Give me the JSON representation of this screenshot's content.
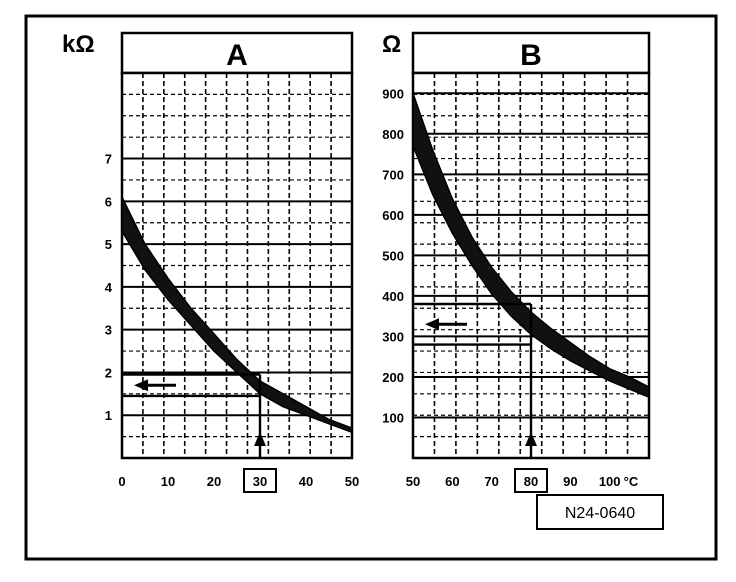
{
  "figure_id": "N24-0640",
  "colors": {
    "ink": "#000000",
    "paper": "#ffffff"
  },
  "chart_data": [
    {
      "type": "area",
      "panel": "A",
      "title": "A",
      "ylabel": "kΩ",
      "xlabel": "",
      "xlim": [
        0,
        50
      ],
      "ylim": [
        0,
        9
      ],
      "x_ticks": [
        0,
        10,
        20,
        30,
        40,
        50
      ],
      "x_tick_labels": [
        "0",
        "10",
        "20",
        "30",
        "40",
        "50"
      ],
      "y_ticks": [
        1,
        2,
        3,
        4,
        5,
        6,
        7
      ],
      "y_tick_labels": [
        "1",
        "2",
        "3",
        "4",
        "5",
        "6",
        "7"
      ],
      "grid": true,
      "band": {
        "x": [
          0,
          5,
          10,
          15,
          20,
          25,
          30,
          35,
          40,
          45,
          50
        ],
        "upper": [
          6.1,
          5.0,
          4.2,
          3.5,
          2.9,
          2.3,
          1.8,
          1.5,
          1.2,
          0.9,
          0.7
        ],
        "lower": [
          5.3,
          4.4,
          3.7,
          3.1,
          2.5,
          2.0,
          1.5,
          1.2,
          1.0,
          0.8,
          0.6
        ]
      },
      "reading": {
        "x": 30,
        "y_low": 1.45,
        "y_high": 1.95,
        "boxed_tick": "30"
      }
    },
    {
      "type": "area",
      "panel": "B",
      "title": "B",
      "ylabel": "Ω",
      "xlabel": "",
      "xlim": [
        50,
        110
      ],
      "ylim": [
        0,
        950
      ],
      "x_ticks": [
        50,
        60,
        70,
        80,
        90,
        100
      ],
      "x_tick_labels": [
        "50",
        "60",
        "70",
        "80",
        "90",
        "100"
      ],
      "x_unit_label": "°C",
      "y_ticks": [
        100,
        200,
        300,
        400,
        500,
        600,
        700,
        800,
        900
      ],
      "y_tick_labels": [
        "100",
        "200",
        "300",
        "400",
        "500",
        "600",
        "700",
        "800",
        "900"
      ],
      "grid": true,
      "band": {
        "x": [
          50,
          55,
          60,
          65,
          70,
          75,
          80,
          85,
          90,
          95,
          100,
          105,
          110
        ],
        "upper": [
          900,
          760,
          640,
          545,
          470,
          410,
          360,
          320,
          285,
          250,
          220,
          200,
          175
        ],
        "lower": [
          770,
          650,
          555,
          475,
          405,
          350,
          305,
          270,
          240,
          215,
          190,
          170,
          150
        ]
      },
      "reading": {
        "x": 80,
        "y_low": 280,
        "y_high": 380,
        "boxed_tick": "80"
      }
    }
  ]
}
